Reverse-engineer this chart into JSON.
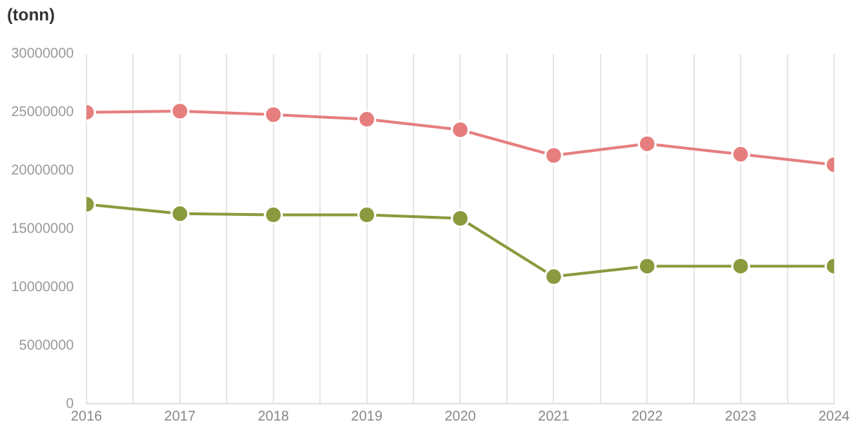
{
  "chart_data": {
    "type": "line",
    "ylabel": "(tonn)",
    "x": [
      2016,
      2017,
      2018,
      2019,
      2020,
      2021,
      2022,
      2023,
      2024
    ],
    "series": [
      {
        "color": "#e67e7e",
        "values": [
          25000000,
          25100000,
          24800000,
          24400000,
          23500000,
          21300000,
          22300000,
          21400000,
          20500000
        ]
      },
      {
        "color": "#8a9a3e",
        "values": [
          17100000,
          16300000,
          16200000,
          16200000,
          15900000,
          10900000,
          11800000,
          11800000,
          11800000
        ]
      }
    ],
    "xlim": [
      2016,
      2024
    ],
    "xticks": [
      2016,
      {
        "value": 2016.5,
        "label": null
      },
      2017,
      {
        "value": 2017.5,
        "label": null
      },
      2018,
      {
        "value": 2018.5,
        "label": null
      },
      2019,
      {
        "value": 2019.5,
        "label": null
      },
      2020,
      {
        "value": 2020.5,
        "label": null
      },
      2021,
      {
        "value": 2021.5,
        "label": null
      },
      2022,
      {
        "value": 2022.5,
        "label": null
      },
      2023,
      {
        "value": 2023.5,
        "label": null
      },
      2024
    ],
    "ylim": [
      0,
      30000000
    ],
    "yticks": [
      0,
      5000000,
      10000000,
      15000000,
      20000000,
      25000000,
      30000000
    ],
    "grid": "x",
    "marker": "circle",
    "line_style": "solid",
    "legend": false
  }
}
